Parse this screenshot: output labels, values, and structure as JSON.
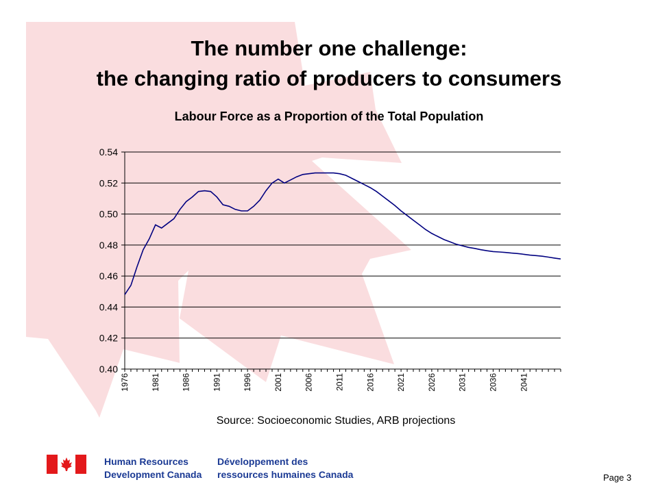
{
  "slide": {
    "title_line1": "The number one challenge:",
    "title_line2": "the changing ratio of producers to consumers",
    "source": "Source: Socioeconomic Studies, ARB projections",
    "page": "Page 3"
  },
  "footer": {
    "dept_en_line1": "Human Resources",
    "dept_en_line2": "Development Canada",
    "dept_fr_line1": "Développement des",
    "dept_fr_line2": "ressources humaines Canada"
  },
  "colors": {
    "line": "#000080",
    "maple_bg": "#fad9dc",
    "flag_red": "#e3191b",
    "dept_text": "#1b3a94"
  },
  "chart_data": {
    "type": "line",
    "title": "Labour Force as a Proportion of the Total Population",
    "xlabel": "",
    "ylabel": "",
    "ylim": [
      0.4,
      0.54
    ],
    "yticks": [
      "0.40",
      "0.42",
      "0.44",
      "0.46",
      "0.48",
      "0.50",
      "0.52",
      "0.54"
    ],
    "xlim": [
      1976,
      2047
    ],
    "xticks": [
      "1976",
      "1981",
      "1986",
      "1991",
      "1996",
      "2001",
      "2006",
      "2011",
      "2016",
      "2021",
      "2026",
      "2031",
      "2036",
      "2041"
    ],
    "grid": "horizontal",
    "series": [
      {
        "x": [
          1976,
          1977,
          1978,
          1979,
          1980,
          1981,
          1982,
          1983,
          1984,
          1985,
          1986,
          1987,
          1988,
          1989,
          1990,
          1991,
          1992,
          1993,
          1994,
          1995,
          1996,
          1997,
          1998,
          1999,
          2000,
          2001,
          2002,
          2003,
          2004,
          2005,
          2006,
          2007,
          2008,
          2009,
          2010,
          2011,
          2012,
          2013,
          2014,
          2015,
          2016,
          2017,
          2018,
          2019,
          2020,
          2021,
          2022,
          2023,
          2024,
          2025,
          2026,
          2027,
          2028,
          2029,
          2030,
          2031,
          2032,
          2033,
          2034,
          2035,
          2036,
          2037,
          2038,
          2039,
          2040,
          2041,
          2042,
          2043,
          2044,
          2045,
          2046,
          2047
        ],
        "values": [
          0.448,
          0.454,
          0.466,
          0.477,
          0.484,
          0.493,
          0.491,
          0.494,
          0.497,
          0.503,
          0.508,
          0.511,
          0.5145,
          0.515,
          0.5145,
          0.511,
          0.506,
          0.505,
          0.503,
          0.502,
          0.502,
          0.505,
          0.509,
          0.515,
          0.52,
          0.5225,
          0.52,
          0.522,
          0.524,
          0.5255,
          0.526,
          0.5265,
          0.5265,
          0.5265,
          0.5265,
          0.526,
          0.525,
          0.523,
          0.521,
          0.519,
          0.517,
          0.5145,
          0.5115,
          0.5085,
          0.5055,
          0.502,
          0.499,
          0.496,
          0.493,
          0.49,
          0.4875,
          0.4855,
          0.4835,
          0.482,
          0.4805,
          0.4795,
          0.4785,
          0.4778,
          0.477,
          0.4763,
          0.4758,
          0.4755,
          0.4752,
          0.4748,
          0.4745,
          0.474,
          0.4735,
          0.4732,
          0.4728,
          0.4722,
          0.4716,
          0.471
        ]
      }
    ]
  }
}
